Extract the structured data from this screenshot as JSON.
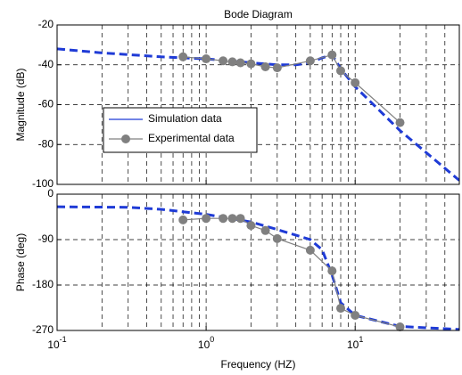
{
  "chart_data": [
    {
      "type": "line",
      "title": "Bode Diagram",
      "ylabel": "Magnitude (dB)",
      "log_x": true,
      "grid": true,
      "xlim": [
        0.1,
        50
      ],
      "xticks": [
        0.1,
        1,
        10
      ],
      "x_minor_ticks": [
        0.2,
        0.3,
        0.4,
        0.5,
        0.6,
        0.7,
        0.8,
        0.9,
        2,
        3,
        4,
        5,
        6,
        7,
        8,
        9,
        20,
        30,
        40
      ],
      "ylim": [
        -100,
        -20
      ],
      "yticks": [
        -20,
        -40,
        -60,
        -80,
        -100
      ],
      "legend": "lower left",
      "series": [
        {
          "name": "Simulation data",
          "color": "#1f3bd6",
          "style": "dashed",
          "x": [
            0.1,
            0.2,
            0.5,
            1,
            2,
            3,
            4,
            5,
            6,
            7,
            8,
            10,
            20,
            50
          ],
          "values": [
            -32,
            -34,
            -36,
            -37,
            -39,
            -40,
            -40,
            -39,
            -36.5,
            -35,
            -42,
            -51,
            -73,
            -98
          ]
        },
        {
          "name": "Experimental data",
          "color": "#808080",
          "style": "solid",
          "marker": true,
          "x": [
            0.7,
            1,
            1.3,
            1.5,
            1.7,
            2,
            2.5,
            3,
            5,
            7,
            8,
            10,
            20
          ],
          "values": [
            -36,
            -37,
            -38,
            -38.5,
            -39,
            -39.5,
            -41,
            -41.5,
            -38,
            -35,
            -43,
            -49,
            -69
          ]
        }
      ]
    },
    {
      "type": "line",
      "xlabel": "Frequency (HZ)",
      "ylabel": "Phase (deg)",
      "log_x": true,
      "grid": true,
      "xlim": [
        0.1,
        50
      ],
      "xticks": [
        {
          "value": 0.1,
          "label": "10",
          "exponent": "-1"
        },
        {
          "value": 1,
          "label": "10",
          "exponent": "0"
        },
        {
          "value": 10,
          "label": "10",
          "exponent": "1"
        }
      ],
      "x_minor_ticks": [
        0.2,
        0.3,
        0.4,
        0.5,
        0.6,
        0.7,
        0.8,
        0.9,
        2,
        3,
        4,
        5,
        6,
        7,
        8,
        9,
        20,
        30,
        40
      ],
      "ylim": [
        -270,
        0
      ],
      "yticks": [
        0,
        -90,
        -180,
        -270
      ],
      "series": [
        {
          "color": "#1f3bd6",
          "style": "dashed",
          "x": [
            0.1,
            0.3,
            0.5,
            1,
            2,
            3,
            5,
            6,
            7,
            8,
            10,
            20,
            50
          ],
          "values": [
            -25,
            -26,
            -30,
            -40,
            -55,
            -70,
            -90,
            -110,
            -160,
            -215,
            -240,
            -262,
            -268
          ]
        },
        {
          "color": "#808080",
          "style": "solid",
          "marker": true,
          "x": [
            0.7,
            1,
            1.3,
            1.5,
            1.7,
            2,
            2.5,
            3,
            5,
            7,
            8,
            10,
            20
          ],
          "values": [
            -51,
            -48,
            -48,
            -48,
            -48,
            -62,
            -72,
            -88,
            -111,
            -152,
            -226,
            -240,
            -263
          ]
        }
      ]
    }
  ]
}
